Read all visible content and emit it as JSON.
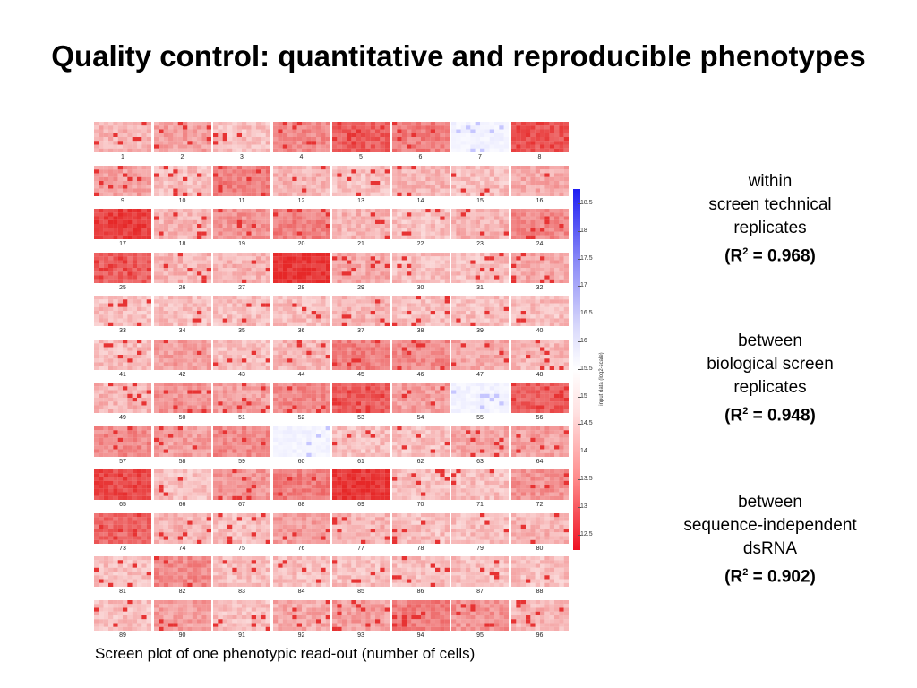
{
  "title": "Quality control: quantitative and reproducible phenotypes",
  "caption": "Screen plot of one phenotypic read-out (number of cells)",
  "plates": {
    "numbers": [
      "1",
      "2",
      "3",
      "4",
      "5",
      "6",
      "7",
      "8",
      "9",
      "10",
      "11",
      "12",
      "13",
      "14",
      "15",
      "16",
      "17",
      "18",
      "19",
      "20",
      "21",
      "22",
      "23",
      "24",
      "25",
      "26",
      "27",
      "28",
      "29",
      "30",
      "31",
      "32",
      "33",
      "34",
      "35",
      "36",
      "37",
      "38",
      "39",
      "40",
      "41",
      "42",
      "43",
      "44",
      "45",
      "46",
      "47",
      "48",
      "49",
      "50",
      "51",
      "52",
      "53",
      "54",
      "55",
      "56",
      "57",
      "58",
      "59",
      "60",
      "61",
      "62",
      "63",
      "64",
      "65",
      "66",
      "67",
      "68",
      "69",
      "70",
      "71",
      "72",
      "73",
      "74",
      "75",
      "76",
      "77",
      "78",
      "79",
      "80",
      "81",
      "82",
      "83",
      "84",
      "85",
      "86",
      "87",
      "88",
      "89",
      "90",
      "91",
      "92",
      "93",
      "94",
      "95",
      "96"
    ],
    "intensity": [
      0.35,
      0.45,
      0.3,
      0.55,
      0.75,
      0.6,
      0.2,
      0.8,
      0.45,
      0.3,
      0.6,
      0.35,
      0.3,
      0.35,
      0.3,
      0.4,
      0.9,
      0.35,
      0.5,
      0.6,
      0.35,
      0.3,
      0.35,
      0.55,
      0.75,
      0.35,
      0.35,
      0.95,
      0.4,
      0.3,
      0.3,
      0.4,
      0.3,
      0.3,
      0.3,
      0.3,
      0.35,
      0.3,
      0.3,
      0.3,
      0.3,
      0.45,
      0.3,
      0.35,
      0.6,
      0.55,
      0.4,
      0.35,
      0.35,
      0.5,
      0.45,
      0.55,
      0.75,
      0.45,
      0.2,
      0.75,
      0.55,
      0.45,
      0.55,
      0.2,
      0.3,
      0.3,
      0.4,
      0.45,
      0.85,
      0.3,
      0.5,
      0.6,
      0.95,
      0.3,
      0.3,
      0.5,
      0.7,
      0.35,
      0.3,
      0.45,
      0.35,
      0.3,
      0.3,
      0.35,
      0.3,
      0.55,
      0.3,
      0.3,
      0.3,
      0.3,
      0.3,
      0.3,
      0.3,
      0.45,
      0.3,
      0.4,
      0.45,
      0.6,
      0.5,
      0.35
    ],
    "tint": [
      "red",
      "red",
      "red",
      "red",
      "red",
      "red",
      "blue",
      "red",
      "red",
      "red",
      "red",
      "red",
      "red",
      "red",
      "red",
      "red",
      "red",
      "red",
      "red",
      "red",
      "red",
      "red",
      "red",
      "red",
      "red",
      "red",
      "red",
      "red",
      "red",
      "red",
      "red",
      "red",
      "red",
      "red",
      "red",
      "red",
      "red",
      "red",
      "red",
      "red",
      "red",
      "red",
      "red",
      "red",
      "red",
      "red",
      "red",
      "red",
      "red",
      "red",
      "red",
      "red",
      "red",
      "red",
      "blue",
      "red",
      "red",
      "red",
      "red",
      "blue",
      "red",
      "red",
      "red",
      "red",
      "red",
      "red",
      "red",
      "red",
      "red",
      "red",
      "red",
      "red",
      "red",
      "red",
      "red",
      "red",
      "red",
      "red",
      "red",
      "red",
      "red",
      "red",
      "red",
      "red",
      "red",
      "red",
      "red",
      "red",
      "red",
      "red",
      "red",
      "red",
      "red",
      "red",
      "red",
      "red"
    ]
  },
  "colorbar": {
    "label": "input data (log2-scale)",
    "ticks": [
      "18.5",
      "18",
      "17.5",
      "17",
      "16.5",
      "16",
      "15.5",
      "15",
      "14.5",
      "14",
      "13.5",
      "13",
      "12.5"
    ],
    "high_color": "#1d1df2",
    "mid_color": "#ffffff",
    "low_color": "#ee1122"
  },
  "notes": [
    {
      "lines": [
        "within",
        "screen technical",
        "replicates"
      ],
      "r2_prefix": "(R",
      "r2_exp": "2",
      "r2_suffix": " = 0.968)"
    },
    {
      "lines": [
        "between",
        "biological screen",
        "replicates"
      ],
      "r2_prefix": "(R",
      "r2_exp": "2",
      "r2_suffix": " = 0.948)"
    },
    {
      "lines": [
        "between",
        "sequence-independent",
        "dsRNA"
      ],
      "r2_prefix": "(R",
      "r2_exp": "2",
      "r2_suffix": " = 0.902)"
    }
  ]
}
